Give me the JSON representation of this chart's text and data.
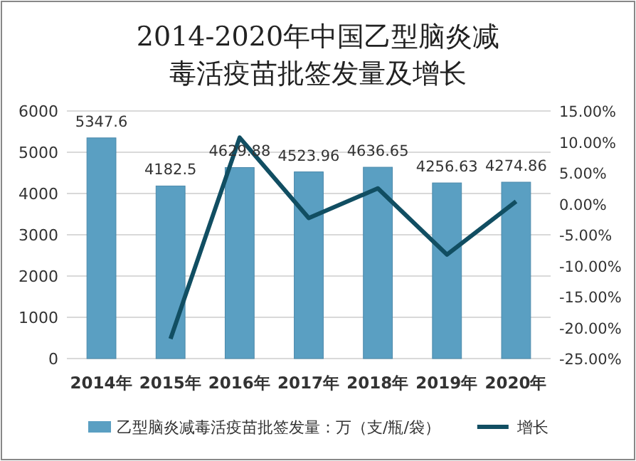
{
  "chart_data": {
    "type": "bar",
    "title": "2014-2020年中国乙型脑炎减毒活疫苗批签发量及增长",
    "categories": [
      "2014年",
      "2015年",
      "2016年",
      "2017年",
      "2018年",
      "2019年",
      "2020年"
    ],
    "series": [
      {
        "name": "乙型脑炎减毒活疫苗批签发量：万（支/瓶/袋）",
        "color": "#5a9fc2",
        "values": [
          5347.6,
          4182.5,
          4629.88,
          4523.96,
          4636.65,
          4256.63,
          4274.86
        ],
        "value_labels": [
          "5347.6",
          "4182.5",
          "4629.88",
          "4523.96",
          "4636.65",
          "4256.63",
          "4274.86"
        ]
      },
      {
        "name": "增长",
        "type": "line",
        "axis": "y2",
        "color": "#114e62",
        "values": [
          null,
          -21.8,
          10.7,
          -2.3,
          2.5,
          -8.2,
          0.4
        ]
      }
    ],
    "ylim": [
      0,
      6000
    ],
    "yticks": [
      0,
      1000,
      2000,
      3000,
      4000,
      5000,
      6000
    ],
    "y2lim": [
      -25,
      15
    ],
    "y2ticks": [
      {
        "value": -25,
        "label": "-25.00%"
      },
      {
        "value": -20,
        "label": "-20.00%"
      },
      {
        "value": -15,
        "label": "-15.00%"
      },
      {
        "value": -10,
        "label": "-10.00%"
      },
      {
        "value": -5,
        "label": "-5.00%"
      },
      {
        "value": 0,
        "label": "0.00%"
      },
      {
        "value": 5,
        "label": "5.00%"
      },
      {
        "value": 10,
        "label": "10.00%"
      },
      {
        "value": 15,
        "label": "15.00%"
      }
    ],
    "grid": "y",
    "legend": "bottom",
    "marker": "none"
  }
}
